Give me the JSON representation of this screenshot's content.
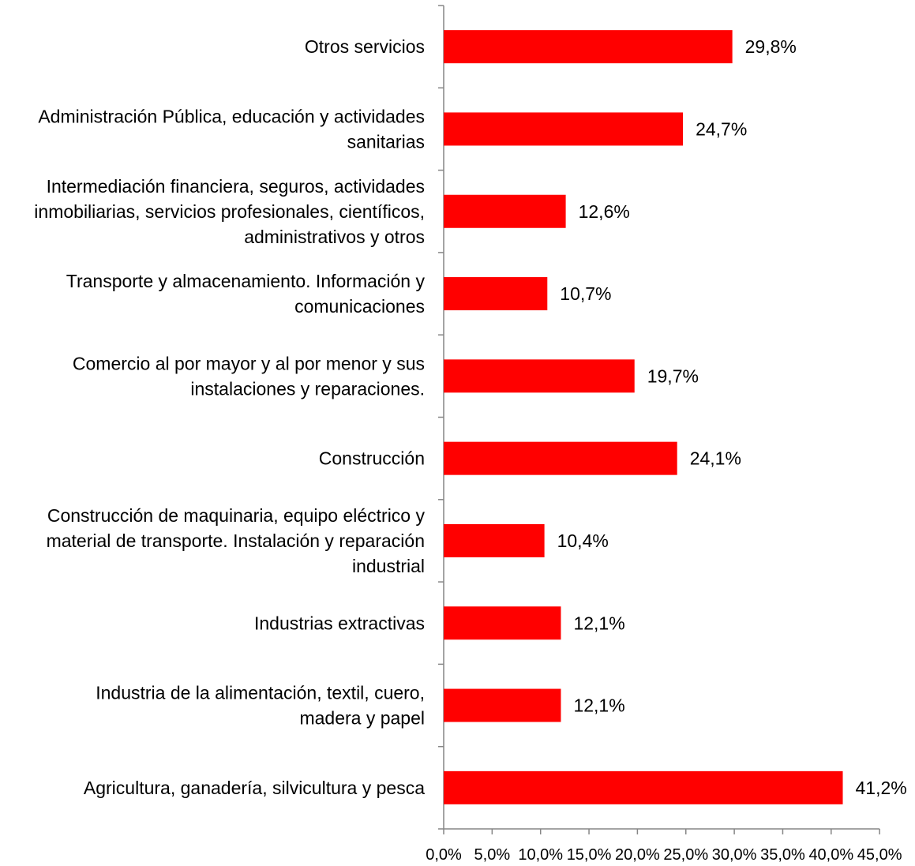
{
  "chart_data": {
    "type": "bar",
    "orientation": "horizontal",
    "categories": [
      [
        "Otros servicios"
      ],
      [
        "Administración Pública, educación y actividades",
        "sanitarias"
      ],
      [
        "Intermediación financiera, seguros, actividades",
        "inmobiliarias, servicios profesionales, científicos,",
        "administrativos y otros"
      ],
      [
        "Transporte y almacenamiento. Información y",
        "comunicaciones"
      ],
      [
        "Comercio al por mayor y al por menor y sus",
        "instalaciones y reparaciones."
      ],
      [
        "Construcción"
      ],
      [
        "Construcción de maquinaria, equipo eléctrico y",
        "material de transporte. Instalación y reparación",
        "industrial"
      ],
      [
        "Industrias extractivas"
      ],
      [
        "Industria de la alimentación, textil, cuero,",
        "madera y papel"
      ],
      [
        "Agricultura, ganadería, silvicultura y pesca"
      ]
    ],
    "values": [
      29.8,
      24.7,
      12.6,
      10.7,
      19.7,
      24.1,
      10.4,
      12.1,
      12.1,
      41.2
    ],
    "value_labels": [
      "29,8%",
      "24,7%",
      "12,6%",
      "10,7%",
      "19,7%",
      "24,1%",
      "10,4%",
      "12,1%",
      "12,1%",
      "41,2%"
    ],
    "xlim": [
      0,
      45
    ],
    "x_ticks": [
      0,
      5,
      10,
      15,
      20,
      25,
      30,
      35,
      40,
      45
    ],
    "x_tick_labels": [
      "0,0%",
      "5,0%",
      "10,0%",
      "15,0%",
      "20,0%",
      "25,0%",
      "30,0%",
      "35,0%",
      "40,0%",
      "45,0%"
    ],
    "bar_color": "#ff0000",
    "axis_color": "#868686",
    "grid": false,
    "legend": "none",
    "title": "",
    "xlabel": "",
    "ylabel": ""
  }
}
